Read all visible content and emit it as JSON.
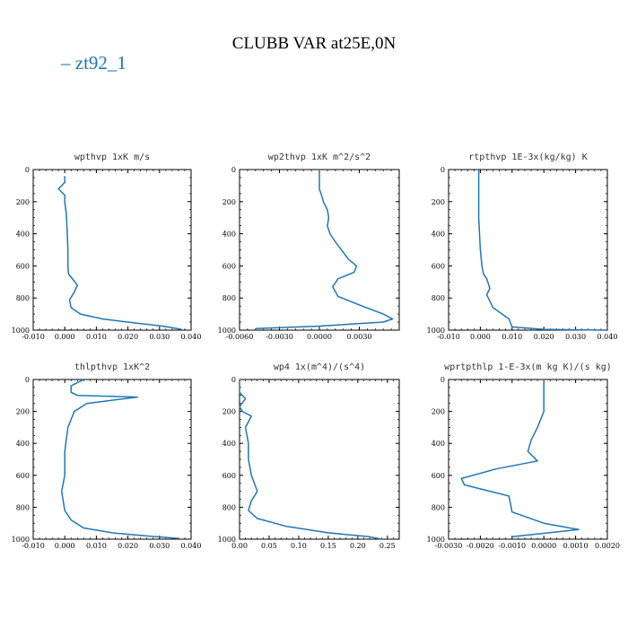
{
  "figure": {
    "title": "CLUBB VAR at25E,0N",
    "legend_label": "zt92_1",
    "line_color": "#1f77b4"
  },
  "chart_data": [
    {
      "type": "line",
      "title": "wpthvp  1xK m/s",
      "xlim": [
        -0.01,
        0.04
      ],
      "ylim": [
        1000,
        0
      ],
      "xticks": [
        "-0.010",
        "0.000",
        "0.010",
        "0.020",
        "0.030",
        "0.040"
      ],
      "xtick_values": [
        -0.01,
        0.0,
        0.01,
        0.02,
        0.03,
        0.04
      ],
      "yticks": [
        "0",
        "200",
        "400",
        "600",
        "800",
        "1000"
      ],
      "ytick_values": [
        0,
        200,
        400,
        600,
        800,
        1000
      ],
      "series": [
        {
          "x": [
            0.0,
            0.0,
            -0.002,
            0.0,
            0.0,
            0.0005,
            0.0008,
            0.001,
            0.001,
            0.0012,
            0.0028,
            0.004,
            0.0028,
            0.0015,
            0.002,
            0.005,
            0.012,
            0.022,
            0.031,
            0.037
          ],
          "y": [
            40,
            80,
            120,
            160,
            200,
            280,
            400,
            500,
            600,
            650,
            690,
            720,
            770,
            810,
            860,
            900,
            930,
            955,
            975,
            995
          ]
        }
      ]
    },
    {
      "type": "line",
      "title": "wp2thvp  1xK m^2/s^2",
      "xlim": [
        -0.006,
        0.006
      ],
      "ylim": [
        1000,
        0
      ],
      "xticks": [
        "-0.0060",
        "-0.0030",
        "0.0000",
        "0.0030"
      ],
      "xtick_values": [
        -0.006,
        -0.003,
        0.0,
        0.003
      ],
      "yticks": [
        "0",
        "200",
        "400",
        "600",
        "800",
        "1000"
      ],
      "ytick_values": [
        0,
        200,
        400,
        600,
        800,
        1000
      ],
      "series": [
        {
          "x": [
            0.0,
            0.0,
            0.0002,
            0.0003,
            0.0006,
            0.0007,
            0.0006,
            0.0008,
            0.0012,
            0.0022,
            0.0028,
            0.0026,
            0.0014,
            0.001,
            0.0014,
            0.0032,
            0.0048,
            0.0055,
            0.0048,
            0.0,
            -0.0048
          ],
          "y": [
            0,
            120,
            170,
            200,
            250,
            300,
            350,
            400,
            450,
            560,
            600,
            640,
            680,
            730,
            790,
            850,
            900,
            930,
            950,
            975,
            990
          ]
        }
      ]
    },
    {
      "type": "line",
      "title": "rtpthvp  1E-3x(kg/kg) K",
      "xlim": [
        -0.01,
        0.04
      ],
      "ylim": [
        1000,
        0
      ],
      "xticks": [
        "-0.010",
        "0.000",
        "0.010",
        "0.020",
        "0.030",
        "0.040"
      ],
      "xtick_values": [
        -0.01,
        0.0,
        0.01,
        0.02,
        0.03,
        0.04
      ],
      "yticks": [
        "0",
        "200",
        "400",
        "600",
        "800",
        "1000"
      ],
      "ytick_values": [
        0,
        200,
        400,
        600,
        800,
        1000
      ],
      "series": [
        {
          "x": [
            -0.0005,
            -0.0005,
            0.0,
            0.0005,
            0.001,
            0.002,
            0.003,
            0.002,
            0.004,
            0.009,
            0.01,
            0.02,
            0.039
          ],
          "y": [
            0,
            300,
            500,
            600,
            650,
            680,
            740,
            780,
            860,
            930,
            980,
            995,
            1000
          ]
        }
      ]
    },
    {
      "type": "line",
      "title": "thlpthvp  1xK^2",
      "xlim": [
        -0.01,
        0.04
      ],
      "ylim": [
        1000,
        0
      ],
      "xticks": [
        "-0.010",
        "0.000",
        "0.010",
        "0.020",
        "0.030",
        "0.040"
      ],
      "xtick_values": [
        -0.01,
        0.0,
        0.01,
        0.02,
        0.03,
        0.04
      ],
      "yticks": [
        "0",
        "200",
        "400",
        "600",
        "800",
        "1000"
      ],
      "ytick_values": [
        0,
        200,
        400,
        600,
        800,
        1000
      ],
      "series": [
        {
          "x": [
            0.006,
            0.002,
            0.002,
            0.004,
            0.023,
            0.007,
            0.003,
            0.001,
            0.0,
            0.0,
            -0.001,
            0.0,
            0.002,
            0.006,
            0.015,
            0.026,
            0.036
          ],
          "y": [
            0,
            40,
            80,
            100,
            110,
            150,
            200,
            300,
            450,
            600,
            700,
            820,
            880,
            930,
            960,
            980,
            995
          ]
        }
      ]
    },
    {
      "type": "line",
      "title": "wp4  1x(m^4)/(s^4)",
      "xlim": [
        0.0,
        0.27
      ],
      "ylim": [
        1000,
        0
      ],
      "xticks": [
        "0.00",
        "0.05",
        "0.10",
        "0.15",
        "0.20",
        "0.25"
      ],
      "xtick_values": [
        0.0,
        0.05,
        0.1,
        0.15,
        0.2,
        0.25
      ],
      "yticks": [
        "0",
        "200",
        "400",
        "600",
        "800",
        "1000"
      ],
      "ytick_values": [
        0,
        200,
        400,
        600,
        800,
        1000
      ],
      "series": [
        {
          "x": [
            0.0,
            0.0,
            0.01,
            0.0,
            0.005,
            0.02,
            0.01,
            0.015,
            0.015,
            0.02,
            0.03,
            0.02,
            0.015,
            0.03,
            0.08,
            0.15,
            0.22,
            0.24
          ],
          "y": [
            0,
            80,
            120,
            170,
            200,
            230,
            300,
            400,
            500,
            600,
            700,
            760,
            820,
            870,
            920,
            960,
            985,
            1000
          ]
        }
      ]
    },
    {
      "type": "line",
      "title": "wprtpthlp  1-E-3x(m kg K)/(s kg)",
      "xlim": [
        -0.003,
        0.002
      ],
      "ylim": [
        1000,
        0
      ],
      "xticks": [
        "-0.0030",
        "-0.0020",
        "-0.0010",
        "0.0000",
        "0.0010",
        "0.0020"
      ],
      "xtick_values": [
        -0.003,
        -0.002,
        -0.001,
        0.0,
        0.001,
        0.002
      ],
      "yticks": [
        "0",
        "200",
        "400",
        "600",
        "800",
        "1000"
      ],
      "ytick_values": [
        0,
        200,
        400,
        600,
        800,
        1000
      ],
      "series": [
        {
          "x": [
            0.0,
            0.0,
            -0.0002,
            -0.0004,
            -0.0005,
            -0.0002,
            -0.0015,
            -0.0026,
            -0.0025,
            -0.0011,
            -0.001,
            0.0,
            0.0011,
            -0.001
          ],
          "y": [
            0,
            200,
            300,
            380,
            450,
            510,
            560,
            620,
            660,
            730,
            830,
            900,
            940,
            985
          ]
        }
      ]
    }
  ]
}
